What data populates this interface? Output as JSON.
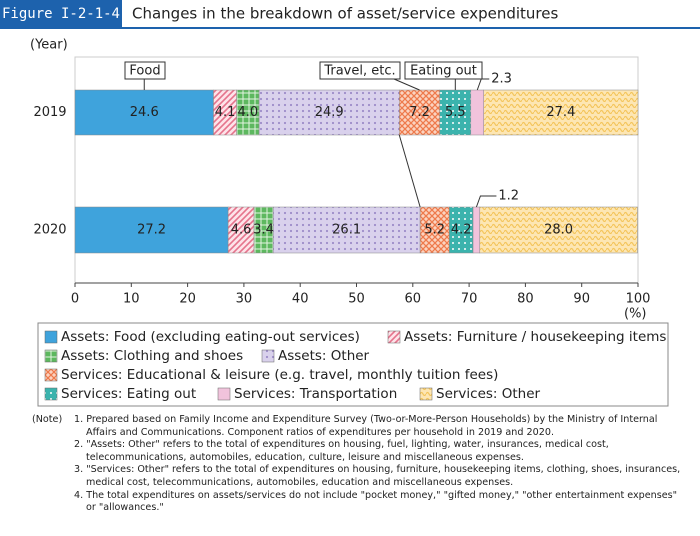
{
  "chart_data": {
    "type": "stacked-barh",
    "figure_label": "Figure I-2-1-4",
    "title": "Changes in the breakdown of asset/service expenditures",
    "y_axis_label": "(Year)",
    "x_axis_label": "(%)",
    "categories": [
      "2019",
      "2020"
    ],
    "xlim": [
      0,
      100
    ],
    "xticks": [
      0,
      10,
      20,
      30,
      40,
      50,
      60,
      70,
      80,
      90,
      100
    ],
    "series": [
      {
        "name": "Assets: Food (excluding eating-out services)",
        "color": "#3fa3dc",
        "values": [
          24.6,
          27.2
        ],
        "value_labels": [
          "24.6",
          "27.2"
        ]
      },
      {
        "name": "Assets: Furniture / housekeeping items",
        "color": "#e5738c",
        "values": [
          4.1,
          4.6
        ],
        "value_labels": [
          "4.1",
          "4.6"
        ]
      },
      {
        "name": "Assets: Clothing and shoes",
        "color": "#5db85f",
        "values": [
          4.0,
          3.4
        ],
        "value_labels": [
          "4.0",
          "3.4"
        ]
      },
      {
        "name": "Assets: Other",
        "color": "#9d8cc9",
        "values": [
          24.9,
          26.1
        ],
        "value_labels": [
          "24.9",
          "26.1"
        ]
      },
      {
        "name": "Services: Educational & leisure (e.g. travel, monthly tuition fees)",
        "color": "#ee7a4c",
        "values": [
          7.2,
          5.2
        ],
        "value_labels": [
          "7.2",
          "5.2"
        ]
      },
      {
        "name": "Services: Eating out",
        "color": "#3bb3ad",
        "values": [
          5.5,
          4.2
        ],
        "value_labels": [
          "5.5",
          "4.2"
        ]
      },
      {
        "name": "Services: Transportation",
        "color": "#f1c3dc",
        "values": [
          2.3,
          1.2
        ],
        "value_labels": [
          "2.3",
          "1.2"
        ]
      },
      {
        "name": "Services: Other",
        "color": "#f4c55c",
        "values": [
          27.4,
          28.0
        ],
        "value_labels": [
          "27.4",
          "28.0"
        ]
      }
    ],
    "annotations": [
      "Food",
      "Travel, etc.",
      "Eating out"
    ],
    "notes": {
      "label": "(Note)",
      "items": [
        "1. Prepared based on Family Income and Expenditure Survey (Two-or-More-Person Households) by the Ministry of Internal Affairs and Communications. Component ratios of expenditures per household in 2019 and 2020.",
        "2. \"Assets: Other\" refers to the total of expenditures on housing, fuel, lighting, water, insurances, medical cost, telecommunications, automobiles, education, culture, leisure and miscellaneous expenses.",
        "3. \"Services: Other\" refers to the total of expenditures on housing, furniture, housekeeping items, clothing, shoes, insurances, medical cost, telecommunications, automobiles, education and miscellaneous expenses.",
        "4. The total expenditures on assets/services do not include \"pocket money,\" \"gifted money,\" \"other entertainment expenses\" or \"allowances.\""
      ]
    }
  }
}
